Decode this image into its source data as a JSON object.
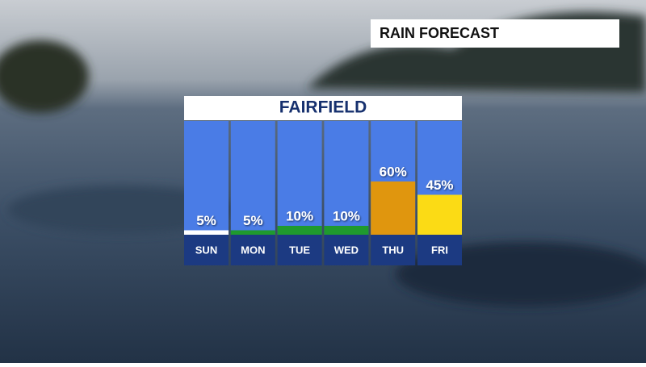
{
  "banner": "RAIN FORECAST",
  "chart_data": {
    "type": "bar",
    "title": "FAIRFIELD",
    "categories": [
      "SUN",
      "MON",
      "TUE",
      "WED",
      "THU",
      "FRI"
    ],
    "values": [
      5,
      5,
      10,
      10,
      60,
      45
    ],
    "value_labels": [
      "5%",
      "5%",
      "10%",
      "10%",
      "60%",
      "45%"
    ],
    "colors": [
      "#ffffff",
      "#1f9a2e",
      "#1f9a2e",
      "#1f9a2e",
      "#e0960e",
      "#fbdb15"
    ]
  }
}
